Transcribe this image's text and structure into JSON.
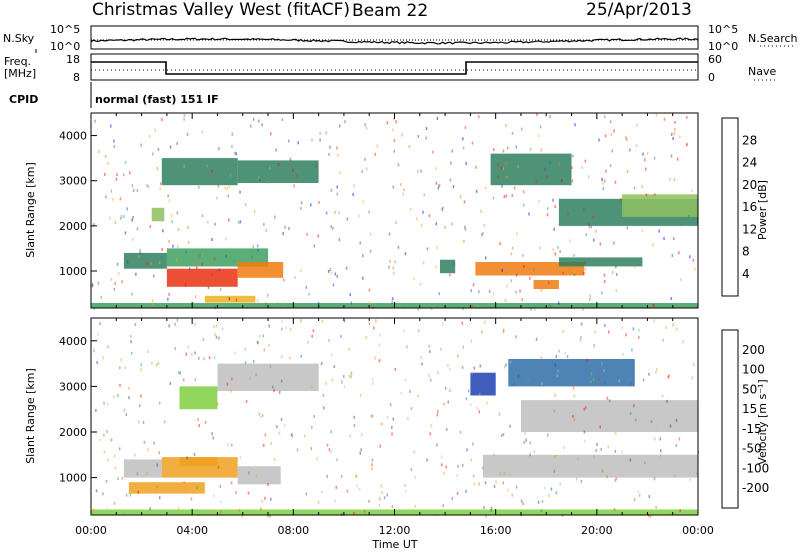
{
  "header": {
    "title": "Christmas Valley West (fitACF)",
    "beam": "Beam 22",
    "date": "25/Apr/2013"
  },
  "nsky_panel": {
    "left_label": "N.Sky",
    "right_label": "N.Search",
    "left_ticks": [
      "10^5",
      "10^0"
    ],
    "right_ticks": [
      "10^5",
      "10^0"
    ]
  },
  "freq_panel": {
    "left_label_1": "Freq.",
    "left_label_2": "[MHz]",
    "right_label": "Nave",
    "left_ticks": [
      "18",
      "8"
    ],
    "right_ticks": [
      "60",
      "0"
    ]
  },
  "cpid": {
    "label": "CPID",
    "value": "normal (fast) 151 IF"
  },
  "colors": {
    "power_scale": [
      "#0000ff",
      "#1f4fb0",
      "#2f7f5f",
      "#3fa060",
      "#8fc05f",
      "#f0b020",
      "#f07a10",
      "#e83010",
      "#ff0000"
    ],
    "velocity_scale": [
      "#1f3fb0",
      "#2f6fa8",
      "#2f9f4f",
      "#7fcf3f",
      "#bebebe",
      "#f0a020",
      "#f07010",
      "#e83818",
      "#ff0000"
    ]
  },
  "chart_data": [
    {
      "type": "heatmap",
      "name": "power-panel",
      "xlabel": "",
      "ylabel": "Slant Range [km]",
      "x_ticks": [
        "00:00",
        "04:00",
        "08:00",
        "12:00",
        "16:00",
        "20:00",
        "00:00"
      ],
      "y_ticks": [
        "1000",
        "2000",
        "3000",
        "4000"
      ],
      "ylim": [
        180,
        4500
      ],
      "colorbar": {
        "label": "Power [dB]",
        "ticks": [
          "28",
          "24",
          "20",
          "16",
          "12",
          "8",
          "4"
        ],
        "range": [
          0,
          32
        ]
      },
      "regions": [
        {
          "t": [
            1.3,
            3.0
          ],
          "r": [
            1050,
            1400
          ],
          "dB": 8
        },
        {
          "t": [
            3.0,
            7.0
          ],
          "r": [
            1100,
            1500
          ],
          "dB": 14
        },
        {
          "t": [
            3.0,
            5.8
          ],
          "r": [
            650,
            1050
          ],
          "dB": 26
        },
        {
          "t": [
            5.8,
            7.6
          ],
          "r": [
            850,
            1200
          ],
          "dB": 22
        },
        {
          "t": [
            4.5,
            6.5
          ],
          "r": [
            300,
            450
          ],
          "dB": 18
        },
        {
          "t": [
            2.8,
            5.8
          ],
          "r": [
            2900,
            3500
          ],
          "dB": 8
        },
        {
          "t": [
            5.8,
            9.0
          ],
          "r": [
            2950,
            3450
          ],
          "dB": 10
        },
        {
          "t": [
            2.4,
            2.9
          ],
          "r": [
            2100,
            2400
          ],
          "dB": 16
        },
        {
          "t": [
            13.8,
            14.4
          ],
          "r": [
            950,
            1250
          ],
          "dB": 8
        },
        {
          "t": [
            15.2,
            19.5
          ],
          "r": [
            900,
            1200
          ],
          "dB": 24
        },
        {
          "t": [
            17.5,
            18.5
          ],
          "r": [
            600,
            800
          ],
          "dB": 22
        },
        {
          "t": [
            18.5,
            21.8
          ],
          "r": [
            1100,
            1300
          ],
          "dB": 8
        },
        {
          "t": [
            15.8,
            19.0
          ],
          "r": [
            2900,
            3600
          ],
          "dB": 8
        },
        {
          "t": [
            18.5,
            24.0
          ],
          "r": [
            2000,
            2600
          ],
          "dB": 8
        },
        {
          "t": [
            21.0,
            24.0
          ],
          "r": [
            2200,
            2700
          ],
          "dB": 16
        },
        {
          "t": [
            0.0,
            24.0
          ],
          "r": [
            180,
            290
          ],
          "dB": 12
        }
      ]
    },
    {
      "type": "heatmap",
      "name": "velocity-panel",
      "xlabel": "Time UT",
      "ylabel": "Slant Range [km]",
      "x_ticks": [
        "00:00",
        "04:00",
        "08:00",
        "12:00",
        "16:00",
        "20:00",
        "00:00"
      ],
      "y_ticks": [
        "1000",
        "2000",
        "3000",
        "4000"
      ],
      "ylim": [
        180,
        4500
      ],
      "colorbar": {
        "label": "Velocity [m s⁻¹]",
        "ticks": [
          "200",
          "100",
          "50",
          "15",
          "-15",
          "-50",
          "-100",
          "-200"
        ],
        "range": [
          -250,
          250
        ]
      },
      "regions": [
        {
          "t": [
            1.3,
            2.8
          ],
          "r": [
            1000,
            1400
          ],
          "v": 0
        },
        {
          "t": [
            2.8,
            5.8
          ],
          "r": [
            1000,
            1450
          ],
          "v": 30
        },
        {
          "t": [
            3.5,
            5.0
          ],
          "r": [
            1250,
            1450
          ],
          "v": 60
        },
        {
          "t": [
            5.8,
            7.5
          ],
          "r": [
            850,
            1250
          ],
          "v": 0
        },
        {
          "t": [
            1.5,
            4.5
          ],
          "r": [
            650,
            900
          ],
          "v": 30
        },
        {
          "t": [
            3.5,
            5.0
          ],
          "r": [
            2500,
            3000
          ],
          "v": -40
        },
        {
          "t": [
            5.0,
            9.0
          ],
          "r": [
            2900,
            3500
          ],
          "v": 0
        },
        {
          "t": [
            15.0,
            16.0
          ],
          "r": [
            2800,
            3300
          ],
          "v": -200
        },
        {
          "t": [
            16.5,
            21.5
          ],
          "r": [
            3000,
            3600
          ],
          "v": -150
        },
        {
          "t": [
            15.5,
            24.0
          ],
          "r": [
            1000,
            1500
          ],
          "v": 0
        },
        {
          "t": [
            17.0,
            24.0
          ],
          "r": [
            2000,
            2700
          ],
          "v": 0
        },
        {
          "t": [
            0.0,
            24.0
          ],
          "r": [
            180,
            300
          ],
          "v": -40
        }
      ]
    }
  ]
}
